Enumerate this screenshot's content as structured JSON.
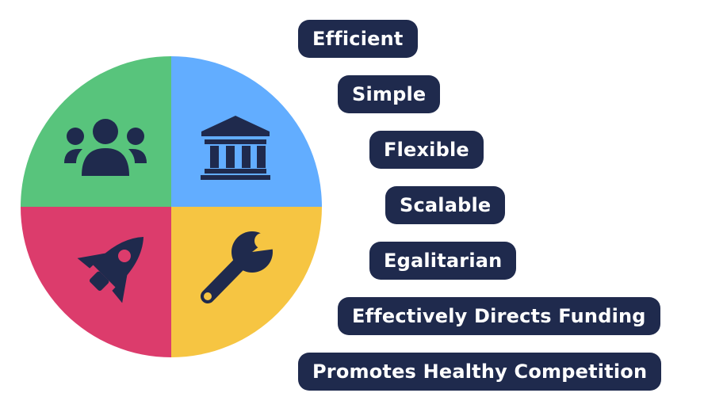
{
  "colors": {
    "pill_bg": "#1f2a4d",
    "icon": "#1f2a4d",
    "quadrant_top_left": "#58c47c",
    "quadrant_top_right": "#62adff",
    "quadrant_bottom_left": "#dc3c6c",
    "quadrant_bottom_right": "#f6c542"
  },
  "wheel": {
    "icons": {
      "top_left": "people-group-icon",
      "top_right": "bank-building-icon",
      "bottom_left": "rocket-icon",
      "bottom_right": "wrench-icon"
    }
  },
  "labels": [
    "Efficient",
    "Simple",
    "Flexible",
    "Scalable",
    "Egalitarian",
    "Effectively Directs Funding",
    "Promotes Healthy Competition"
  ]
}
